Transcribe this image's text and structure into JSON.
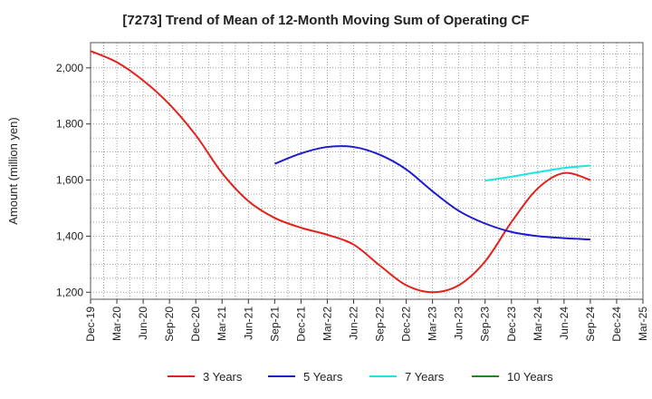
{
  "chart_data": {
    "type": "line",
    "title": "[7273]  Trend of Mean of 12-Month Moving Sum of Operating CF",
    "xlabel": "",
    "ylabel": "Amount (million yen)",
    "ylim": [
      1175,
      2090
    ],
    "yticks": [
      1200,
      1400,
      1600,
      1800,
      2000
    ],
    "ytick_labels": [
      "1,200",
      "1,400",
      "1,600",
      "1,800",
      "2,000"
    ],
    "x_categories": [
      "Dec-19",
      "Mar-20",
      "Jun-20",
      "Sep-20",
      "Dec-20",
      "Mar-21",
      "Jun-21",
      "Sep-21",
      "Dec-21",
      "Mar-22",
      "Jun-22",
      "Sep-22",
      "Dec-22",
      "Mar-23",
      "Jun-23",
      "Sep-23",
      "Dec-23",
      "Mar-24",
      "Jun-24",
      "Sep-24",
      "Dec-24",
      "Mar-25"
    ],
    "grid": true,
    "legend": "bottom",
    "series": [
      {
        "name": "3 Years",
        "color": "#e3211c",
        "x": [
          "Dec-19",
          "Mar-20",
          "Jun-20",
          "Sep-20",
          "Dec-20",
          "Mar-21",
          "Jun-21",
          "Sep-21",
          "Dec-21",
          "Mar-22",
          "Jun-22",
          "Sep-22",
          "Dec-22",
          "Mar-23",
          "Jun-23",
          "Sep-23",
          "Dec-23",
          "Mar-24",
          "Jun-24",
          "Sep-24"
        ],
        "values": [
          2060,
          2020,
          1955,
          1870,
          1760,
          1625,
          1525,
          1465,
          1430,
          1405,
          1370,
          1295,
          1225,
          1200,
          1225,
          1310,
          1450,
          1570,
          1625,
          1600
        ]
      },
      {
        "name": "5 Years",
        "color": "#1c1ccf",
        "x": [
          "Sep-21",
          "Dec-21",
          "Mar-22",
          "Jun-22",
          "Sep-22",
          "Dec-22",
          "Mar-23",
          "Jun-23",
          "Sep-23",
          "Dec-23",
          "Mar-24",
          "Jun-24",
          "Sep-24"
        ],
        "values": [
          1658,
          1695,
          1718,
          1718,
          1690,
          1638,
          1560,
          1490,
          1445,
          1415,
          1400,
          1393,
          1388
        ]
      },
      {
        "name": "7 Years",
        "color": "#19e5e5",
        "x": [
          "Sep-23",
          "Dec-23",
          "Mar-24",
          "Jun-24",
          "Sep-24"
        ],
        "values": [
          1598,
          1612,
          1628,
          1643,
          1652
        ]
      },
      {
        "name": "10 Years",
        "color": "#1c8c1c",
        "x": [],
        "values": []
      }
    ]
  }
}
